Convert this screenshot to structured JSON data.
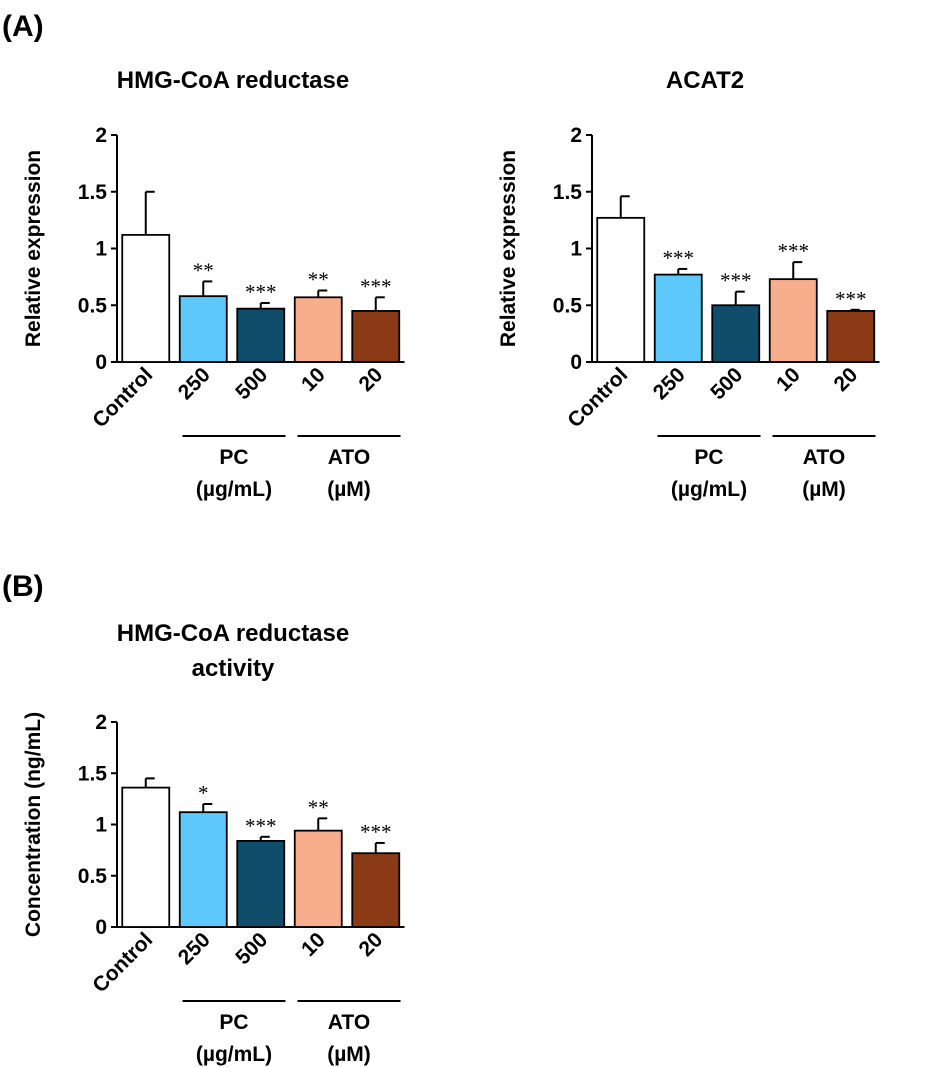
{
  "panels": [
    {
      "label": "(A)"
    },
    {
      "label": "(B)"
    }
  ],
  "colors": {
    "Control": "#ffffff",
    "250": "#5ec8fa",
    "500": "#0f4d6b",
    "10": "#f8ae8c",
    "20": "#8a3a14"
  },
  "chart_data": [
    {
      "type": "bar",
      "title": "HMG-CoA reductase",
      "ylabel": "Relative expression",
      "xlabel": "",
      "ylim": [
        0,
        2
      ],
      "yticks": [
        0,
        0.5,
        1,
        1.5,
        2
      ],
      "ytick_labels": [
        "0",
        "0.5",
        "1",
        "1.5",
        "2"
      ],
      "categories": [
        "Control",
        "250",
        "500",
        "10",
        "20"
      ],
      "values": [
        1.12,
        0.58,
        0.47,
        0.57,
        0.45
      ],
      "errors": [
        0.38,
        0.13,
        0.05,
        0.06,
        0.12
      ],
      "significance": [
        "",
        "**",
        "***",
        "**",
        "***"
      ],
      "groups": [
        {
          "label_line1": "PC",
          "label_line2": "(µg/mL)",
          "categories": [
            "250",
            "500"
          ]
        },
        {
          "label_line1": "ATO",
          "label_line2": "(µM)",
          "categories": [
            "10",
            "20"
          ]
        }
      ]
    },
    {
      "type": "bar",
      "title": "ACAT2",
      "ylabel": "Relative expression",
      "xlabel": "",
      "ylim": [
        0,
        2
      ],
      "yticks": [
        0,
        0.5,
        1,
        1.5,
        2
      ],
      "ytick_labels": [
        "0",
        "0.5",
        "1",
        "1.5",
        "2"
      ],
      "categories": [
        "Control",
        "250",
        "500",
        "10",
        "20"
      ],
      "values": [
        1.27,
        0.77,
        0.5,
        0.73,
        0.45
      ],
      "errors": [
        0.19,
        0.05,
        0.12,
        0.15,
        0.01
      ],
      "significance": [
        "",
        "***",
        "***",
        "***",
        "***"
      ],
      "groups": [
        {
          "label_line1": "PC",
          "label_line2": "(µg/mL)",
          "categories": [
            "250",
            "500"
          ]
        },
        {
          "label_line1": "ATO",
          "label_line2": "(µM)",
          "categories": [
            "10",
            "20"
          ]
        }
      ]
    },
    {
      "type": "bar",
      "title": "HMG-CoA reductase activity",
      "title_line1": "HMG-CoA reductase",
      "title_line2": "activity",
      "ylabel": "Concentration (ng/mL)",
      "xlabel": "",
      "ylim": [
        0,
        2
      ],
      "yticks": [
        0,
        0.5,
        1,
        1.5,
        2
      ],
      "ytick_labels": [
        "0",
        "0.5",
        "1",
        "1.5",
        "2"
      ],
      "categories": [
        "Control",
        "250",
        "500",
        "10",
        "20"
      ],
      "values": [
        1.36,
        1.12,
        0.84,
        0.94,
        0.72
      ],
      "errors": [
        0.09,
        0.08,
        0.04,
        0.12,
        0.1
      ],
      "significance": [
        "",
        "*",
        "***",
        "**",
        "***"
      ],
      "groups": [
        {
          "label_line1": "PC",
          "label_line2": "(µg/mL)",
          "categories": [
            "250",
            "500"
          ]
        },
        {
          "label_line1": "ATO",
          "label_line2": "(µM)",
          "categories": [
            "10",
            "20"
          ]
        }
      ]
    }
  ]
}
